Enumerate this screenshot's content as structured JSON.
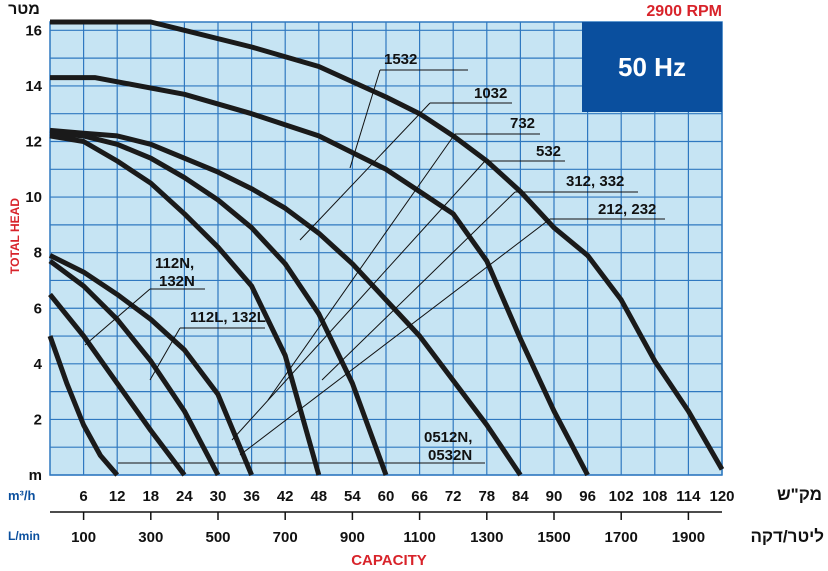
{
  "chart_data": {
    "type": "line",
    "title": "50 Hz",
    "subtitle": "2900 RPM",
    "ylabel": "TOTAL HEAD",
    "ylabel_top": "מטר",
    "xlabel": "CAPACITY",
    "x_unit": "m³/h",
    "x_unit_local": "מק\"ש",
    "x2_unit": "L/min",
    "x2_unit_local": "ליטר/דקה",
    "xlim": [
      0,
      120
    ],
    "xticks": [
      6,
      12,
      18,
      24,
      30,
      36,
      42,
      48,
      54,
      60,
      66,
      72,
      78,
      84,
      90,
      96,
      102,
      108,
      114,
      120
    ],
    "x2lim": [
      0,
      2000
    ],
    "x2ticks": [
      100,
      300,
      500,
      700,
      900,
      1100,
      1300,
      1500,
      1700,
      1900
    ],
    "ylim": [
      0,
      16.3
    ],
    "yticks": [
      {
        "value": 0,
        "label": "m"
      },
      2,
      4,
      6,
      8,
      10,
      12,
      14,
      16
    ],
    "y_minor_grid": [
      1,
      3,
      5,
      7,
      9,
      11,
      13,
      15
    ],
    "grid": true,
    "background": "#c6e4f3",
    "grid_color": "#2f78c0",
    "series": [
      {
        "label": [
          "1532"
        ],
        "color": "#1a1a1a",
        "x": [
          0,
          18,
          24,
          36,
          48,
          60,
          66,
          72,
          78,
          84,
          90,
          96,
          102,
          108,
          114,
          120
        ],
        "values": [
          16.3,
          16.3,
          16.0,
          15.4,
          14.7,
          13.6,
          13.0,
          12.2,
          11.3,
          10.2,
          8.9,
          7.9,
          6.3,
          4.1,
          2.3,
          0.2
        ]
      },
      {
        "label": [
          "1032"
        ],
        "color": "#1a1a1a",
        "x": [
          0,
          8,
          24,
          36,
          48,
          60,
          66,
          72,
          78,
          84,
          90,
          96
        ],
        "values": [
          14.3,
          14.3,
          13.7,
          13.0,
          12.2,
          11.0,
          10.2,
          9.4,
          7.7,
          4.9,
          2.3,
          0
        ]
      },
      {
        "label": [
          "732"
        ],
        "color": "#1a1a1a",
        "x": [
          0,
          6,
          12,
          18,
          24,
          30,
          36,
          42,
          48,
          54,
          60,
          66,
          72,
          78,
          84
        ],
        "values": [
          12.4,
          12.3,
          12.2,
          11.9,
          11.4,
          10.9,
          10.3,
          9.6,
          8.7,
          7.6,
          6.3,
          5.0,
          3.4,
          1.8,
          0
        ]
      },
      {
        "label": [
          "532"
        ],
        "color": "#1a1a1a",
        "x": [
          0,
          6,
          12,
          18,
          24,
          30,
          36,
          42,
          48,
          54,
          60
        ],
        "values": [
          12.3,
          12.2,
          11.9,
          11.4,
          10.7,
          9.9,
          8.9,
          7.6,
          5.8,
          3.3,
          0
        ]
      },
      {
        "label": [
          "312, 332"
        ],
        "color": "#1a1a1a",
        "x": [
          0,
          6,
          12,
          18,
          24,
          30,
          36,
          42,
          48
        ],
        "values": [
          12.2,
          12.0,
          11.3,
          10.5,
          9.4,
          8.2,
          6.8,
          4.3,
          0
        ]
      },
      {
        "label": [
          "212, 232"
        ],
        "color": "#1a1a1a",
        "x": [
          0,
          6,
          12,
          18,
          24,
          30,
          36
        ],
        "values": [
          7.9,
          7.3,
          6.5,
          5.6,
          4.5,
          2.9,
          0
        ]
      },
      {
        "label": [
          "112N,",
          "132N"
        ],
        "color": "#1a1a1a",
        "x": [
          0,
          6,
          12,
          18,
          24,
          30
        ],
        "values": [
          7.7,
          6.8,
          5.6,
          4.1,
          2.3,
          0
        ]
      },
      {
        "label": [
          "112L, 132L"
        ],
        "color": "#1a1a1a",
        "x": [
          0,
          6,
          12,
          18,
          24
        ],
        "values": [
          6.5,
          5.0,
          3.3,
          1.6,
          0
        ]
      },
      {
        "label": [
          "0512N,",
          "0532N"
        ],
        "color": "#1a1a1a",
        "x": [
          0,
          3,
          6,
          9,
          12
        ],
        "values": [
          5.0,
          3.3,
          1.8,
          0.7,
          0
        ]
      }
    ]
  }
}
